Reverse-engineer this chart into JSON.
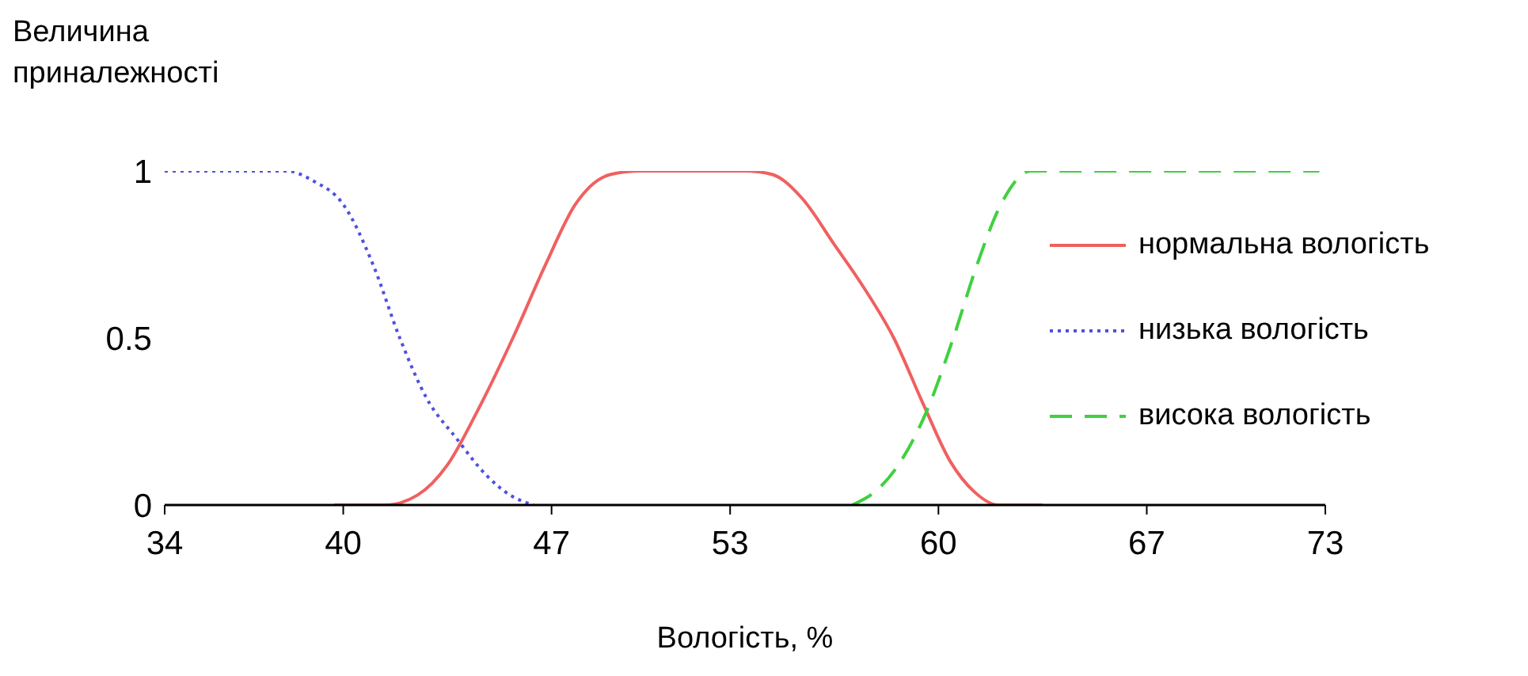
{
  "chart_data": {
    "type": "line",
    "xlabel": "Вологість, %",
    "ylabel": "Величина приналежності",
    "xlim": [
      34,
      73
    ],
    "ylim": [
      0,
      1
    ],
    "xticks": [
      34,
      40,
      47,
      53,
      60,
      67,
      73
    ],
    "yticks": [
      0,
      0.5,
      1
    ],
    "legend": "right",
    "marker": "none",
    "series": [
      {
        "name": "нормальна вологість",
        "color": "#f06060",
        "line_style": "solid",
        "x": [
          39.7,
          41.4,
          42.5,
          43.5,
          44.5,
          45.7,
          46.8,
          47.8,
          49,
          50,
          52,
          53.5,
          54.4,
          55.4,
          56.5,
          57.5,
          58.5,
          59.5,
          60.4,
          61.2,
          62,
          63.5
        ],
        "values": [
          0,
          0,
          0.03,
          0.12,
          0.28,
          0.5,
          0.72,
          0.9,
          0.99,
          1,
          1,
          1,
          0.99,
          0.92,
          0.78,
          0.65,
          0.5,
          0.3,
          0.13,
          0.04,
          0,
          0
        ]
      },
      {
        "name": "низька вологість",
        "color": "#5050e0",
        "line_style": "dotted",
        "x": [
          34,
          36,
          38.1,
          39,
          40,
          41,
          41.9,
          42.8,
          43.8,
          44.8,
          45.6,
          46.4
        ],
        "values": [
          1,
          1,
          1,
          0.97,
          0.9,
          0.72,
          0.5,
          0.32,
          0.2,
          0.09,
          0.03,
          0
        ]
      },
      {
        "name": "висока вологість",
        "color": "#40d040",
        "line_style": "dashed",
        "x": [
          57.1,
          58,
          58.8,
          59.6,
          60.5,
          61.3,
          62.1,
          63.1,
          66,
          70,
          72.8
        ],
        "values": [
          0,
          0.05,
          0.14,
          0.28,
          0.5,
          0.72,
          0.9,
          1,
          1,
          1,
          1
        ]
      }
    ]
  }
}
